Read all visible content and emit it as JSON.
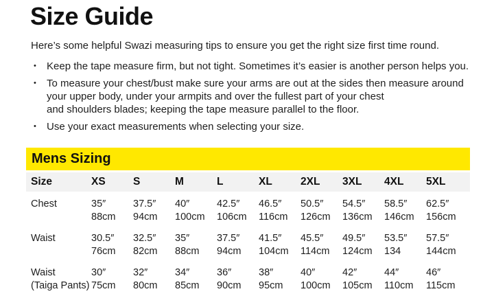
{
  "title": "Size Guide",
  "intro": "Here’s some helpful Swazi measuring tips to ensure you get the right size first time round.",
  "tips": [
    "Keep the tape measure firm, but not tight. Sometimes it’s easier is another person helps you.",
    "To measure your chest/bust make sure your arms are out at the sides then measure around\nyour upper body, under your armpits and over the fullest part of your chest\nand shoulders blades; keeping the tape measure parallel to the floor.",
    "Use your exact measurements when selecting your size."
  ],
  "sizing_table": {
    "banner": "Mens Sizing",
    "header": [
      "Size",
      "XS",
      "S",
      "M",
      "L",
      "XL",
      "2XL",
      "3XL",
      "4XL",
      "5XL"
    ],
    "rows": [
      {
        "label": "Chest",
        "label_line2": "",
        "inches": [
          "35″",
          "37.5″",
          "40″",
          "42.5″",
          "46.5″",
          "50.5″",
          "54.5″",
          "58.5″",
          "62.5″"
        ],
        "cm": [
          "88cm",
          "94cm",
          "100cm",
          "106cm",
          "116cm",
          "126cm",
          "136cm",
          "146cm",
          "156cm"
        ]
      },
      {
        "label": "Waist",
        "label_line2": "",
        "inches": [
          "30.5″",
          "32.5″",
          "35″",
          "37.5″",
          "41.5″",
          "45.5″",
          "49.5″",
          "53.5″",
          "57.5″"
        ],
        "cm": [
          "76cm",
          "82cm",
          "88cm",
          "94cm",
          "104cm",
          "114cm",
          "124cm",
          "134",
          "144cm"
        ]
      },
      {
        "label": "Waist",
        "label_line2": "(Taiga Pants)",
        "inches": [
          "30″",
          "32″",
          "34″",
          "36″",
          "38″",
          "40″",
          "42″",
          "44″",
          "46″"
        ],
        "cm": [
          "75cm",
          "80cm",
          "85cm",
          "90cm",
          "95cm",
          "100cm",
          "105cm",
          "110cm",
          "115cm"
        ]
      }
    ]
  },
  "colors": {
    "banner_yellow": "#FFE800",
    "header_gray": "#F2F2F2",
    "text": "#1E1E1E"
  }
}
